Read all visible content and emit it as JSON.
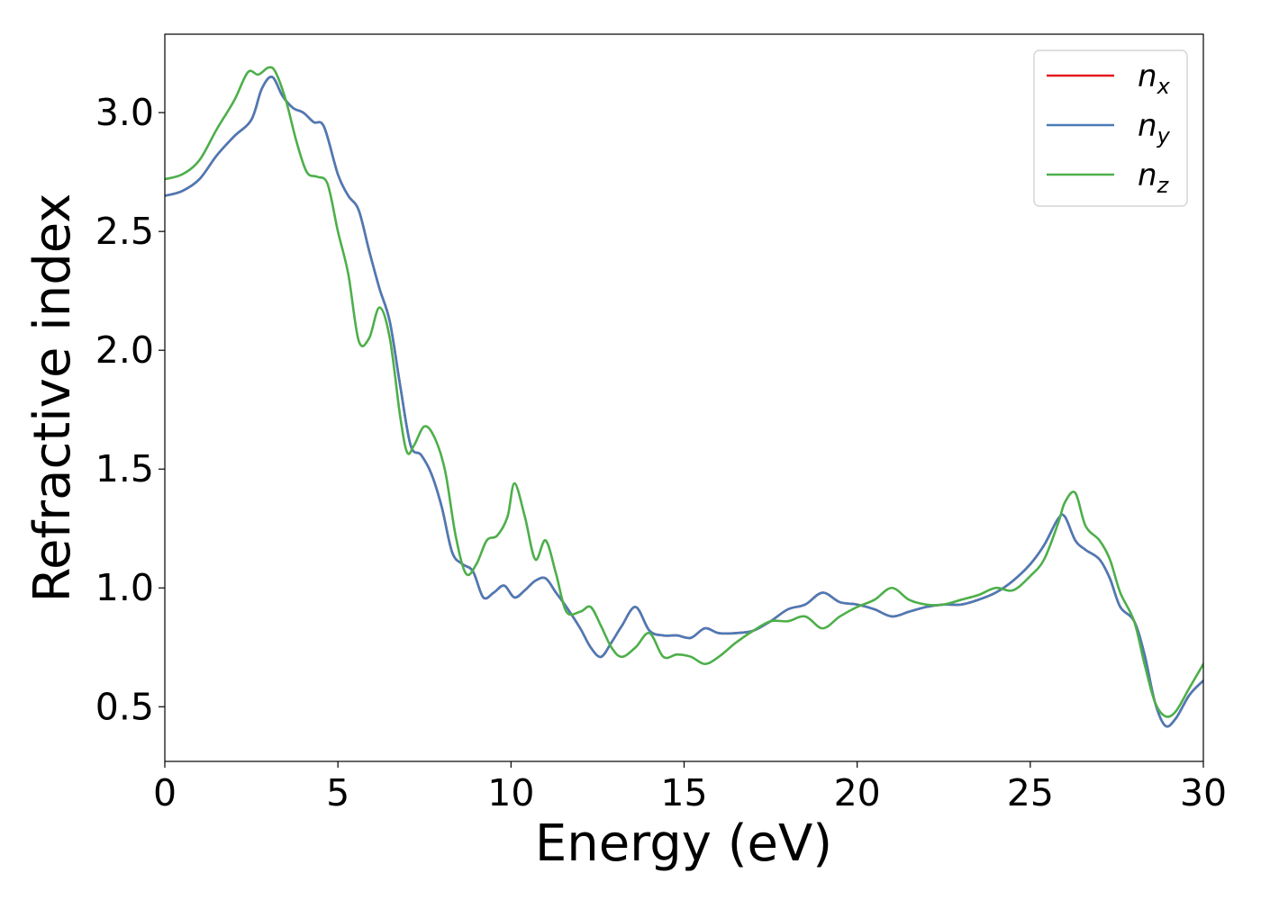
{
  "chart_data": {
    "type": "line",
    "title": "",
    "xlabel": "Energy (eV)",
    "ylabel": "Refractive index",
    "xlim": [
      0,
      30
    ],
    "ylim": [
      0.27,
      3.33
    ],
    "xticks": [
      0,
      5,
      10,
      15,
      20,
      25,
      30
    ],
    "xtick_labels": [
      "0",
      "5",
      "10",
      "15",
      "20",
      "25",
      "30"
    ],
    "yticks": [
      0.5,
      1.0,
      1.5,
      2.0,
      2.5,
      3.0
    ],
    "ytick_labels": [
      "0.5",
      "1.0",
      "1.5",
      "2.0",
      "2.5",
      "3.0"
    ],
    "grid": false,
    "legend_position": "top-right",
    "series": [
      {
        "name": "n",
        "subscript": "x",
        "color": "#e41a1c",
        "x": [
          0,
          0.5,
          1,
          1.5,
          2,
          2.5,
          2.8,
          3.1,
          3.4,
          3.7,
          4.0,
          4.3,
          4.6,
          5.0,
          5.3,
          5.6,
          5.9,
          6.2,
          6.5,
          6.8,
          7.1,
          7.4,
          7.7,
          8.0,
          8.3,
          8.6,
          8.9,
          9.2,
          9.5,
          9.8,
          10.1,
          10.4,
          10.7,
          11.0,
          11.3,
          11.6,
          12.0,
          12.3,
          12.6,
          12.9,
          13.2,
          13.6,
          14.0,
          14.4,
          14.8,
          15.2,
          15.6,
          16.0,
          16.5,
          17.0,
          17.5,
          18.0,
          18.5,
          19.0,
          19.5,
          20.0,
          20.5,
          21.0,
          21.5,
          22.0,
          22.5,
          23.0,
          23.5,
          24.0,
          24.5,
          25.0,
          25.4,
          25.8,
          26.0,
          26.3,
          26.6,
          27.0,
          27.3,
          27.6,
          28.0,
          28.3,
          28.6,
          28.9,
          29.2,
          29.6,
          30.0
        ],
        "y": [
          2.65,
          2.67,
          2.72,
          2.82,
          2.9,
          2.97,
          3.1,
          3.15,
          3.07,
          3.02,
          3.0,
          2.96,
          2.94,
          2.74,
          2.65,
          2.59,
          2.42,
          2.26,
          2.12,
          1.85,
          1.6,
          1.56,
          1.48,
          1.34,
          1.15,
          1.1,
          1.07,
          0.96,
          0.98,
          1.01,
          0.96,
          0.99,
          1.03,
          1.04,
          0.98,
          0.92,
          0.83,
          0.75,
          0.71,
          0.77,
          0.84,
          0.92,
          0.82,
          0.8,
          0.8,
          0.79,
          0.83,
          0.81,
          0.81,
          0.82,
          0.86,
          0.91,
          0.93,
          0.98,
          0.94,
          0.93,
          0.91,
          0.88,
          0.9,
          0.92,
          0.93,
          0.93,
          0.95,
          0.98,
          1.03,
          1.1,
          1.18,
          1.29,
          1.3,
          1.2,
          1.16,
          1.12,
          1.04,
          0.92,
          0.86,
          0.72,
          0.52,
          0.42,
          0.45,
          0.55,
          0.61
        ]
      },
      {
        "name": "n",
        "subscript": "y",
        "color": "#4a7bb7",
        "x": [
          0,
          0.5,
          1,
          1.5,
          2,
          2.5,
          2.8,
          3.1,
          3.4,
          3.7,
          4.0,
          4.3,
          4.6,
          5.0,
          5.3,
          5.6,
          5.9,
          6.2,
          6.5,
          6.8,
          7.1,
          7.4,
          7.7,
          8.0,
          8.3,
          8.6,
          8.9,
          9.2,
          9.5,
          9.8,
          10.1,
          10.4,
          10.7,
          11.0,
          11.3,
          11.6,
          12.0,
          12.3,
          12.6,
          12.9,
          13.2,
          13.6,
          14.0,
          14.4,
          14.8,
          15.2,
          15.6,
          16.0,
          16.5,
          17.0,
          17.5,
          18.0,
          18.5,
          19.0,
          19.5,
          20.0,
          20.5,
          21.0,
          21.5,
          22.0,
          22.5,
          23.0,
          23.5,
          24.0,
          24.5,
          25.0,
          25.4,
          25.8,
          26.0,
          26.3,
          26.6,
          27.0,
          27.3,
          27.6,
          28.0,
          28.3,
          28.6,
          28.9,
          29.2,
          29.6,
          30.0
        ],
        "y": [
          2.65,
          2.67,
          2.72,
          2.82,
          2.9,
          2.97,
          3.1,
          3.15,
          3.07,
          3.02,
          3.0,
          2.96,
          2.94,
          2.74,
          2.65,
          2.59,
          2.42,
          2.26,
          2.12,
          1.85,
          1.6,
          1.56,
          1.48,
          1.34,
          1.15,
          1.1,
          1.07,
          0.96,
          0.98,
          1.01,
          0.96,
          0.99,
          1.03,
          1.04,
          0.98,
          0.92,
          0.83,
          0.75,
          0.71,
          0.77,
          0.84,
          0.92,
          0.82,
          0.8,
          0.8,
          0.79,
          0.83,
          0.81,
          0.81,
          0.82,
          0.86,
          0.91,
          0.93,
          0.98,
          0.94,
          0.93,
          0.91,
          0.88,
          0.9,
          0.92,
          0.93,
          0.93,
          0.95,
          0.98,
          1.03,
          1.1,
          1.18,
          1.29,
          1.3,
          1.2,
          1.16,
          1.12,
          1.04,
          0.92,
          0.86,
          0.72,
          0.52,
          0.42,
          0.45,
          0.55,
          0.61
        ]
      },
      {
        "name": "n",
        "subscript": "z",
        "color": "#4daf4a",
        "x": [
          0,
          0.5,
          1,
          1.5,
          2,
          2.4,
          2.7,
          3.0,
          3.2,
          3.5,
          3.8,
          4.1,
          4.4,
          4.7,
          5.0,
          5.3,
          5.6,
          5.9,
          6.2,
          6.5,
          6.8,
          7.0,
          7.2,
          7.5,
          7.8,
          8.1,
          8.4,
          8.7,
          9.0,
          9.3,
          9.6,
          9.9,
          10.1,
          10.4,
          10.7,
          11.0,
          11.3,
          11.6,
          12.0,
          12.3,
          12.6,
          12.9,
          13.2,
          13.6,
          14.0,
          14.4,
          14.8,
          15.2,
          15.6,
          16.0,
          16.5,
          17.0,
          17.5,
          18.0,
          18.5,
          19.0,
          19.5,
          20.0,
          20.5,
          21.0,
          21.5,
          22.0,
          22.5,
          23.0,
          23.5,
          24.0,
          24.5,
          25.0,
          25.4,
          25.8,
          26.0,
          26.3,
          26.6,
          27.0,
          27.3,
          27.6,
          28.0,
          28.3,
          28.6,
          28.9,
          29.2,
          29.6,
          30.0
        ],
        "y": [
          2.72,
          2.74,
          2.8,
          2.93,
          3.05,
          3.17,
          3.16,
          3.19,
          3.17,
          3.05,
          2.88,
          2.75,
          2.73,
          2.7,
          2.5,
          2.32,
          2.04,
          2.05,
          2.18,
          2.05,
          1.72,
          1.57,
          1.6,
          1.68,
          1.63,
          1.49,
          1.22,
          1.06,
          1.1,
          1.2,
          1.22,
          1.3,
          1.44,
          1.3,
          1.12,
          1.2,
          1.06,
          0.9,
          0.9,
          0.92,
          0.84,
          0.75,
          0.71,
          0.75,
          0.81,
          0.71,
          0.72,
          0.71,
          0.68,
          0.71,
          0.77,
          0.82,
          0.86,
          0.86,
          0.88,
          0.83,
          0.88,
          0.92,
          0.95,
          1.0,
          0.95,
          0.93,
          0.93,
          0.95,
          0.97,
          1.0,
          0.99,
          1.05,
          1.12,
          1.27,
          1.36,
          1.4,
          1.26,
          1.2,
          1.12,
          0.98,
          0.86,
          0.68,
          0.52,
          0.46,
          0.48,
          0.58,
          0.68
        ]
      }
    ]
  }
}
